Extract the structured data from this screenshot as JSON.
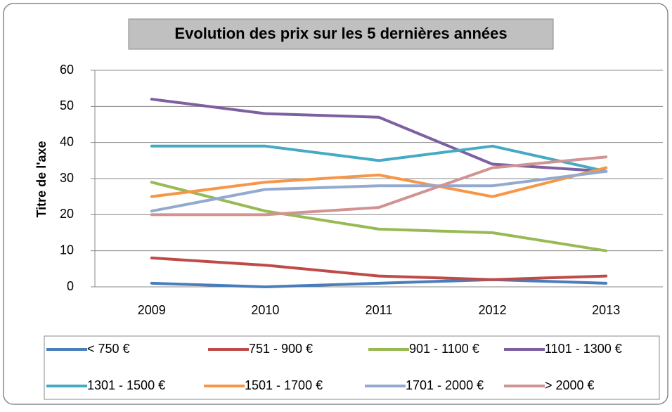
{
  "chart_data": {
    "type": "line",
    "title": "Evolution des prix sur les 5 dernières années",
    "y_label": "Titre de l'axe",
    "categories": [
      "2009",
      "2010",
      "2011",
      "2012",
      "2013"
    ],
    "ylim": [
      0,
      60
    ],
    "yticks": [
      0,
      10,
      20,
      30,
      40,
      50,
      60
    ],
    "grid": true,
    "legend": "bottom",
    "series": [
      {
        "name": "< 750 €",
        "color": "#4a7ebb",
        "values": [
          1,
          0,
          1,
          2,
          1
        ]
      },
      {
        "name": "751 - 900 €",
        "color": "#be4b48",
        "values": [
          8,
          6,
          3,
          2,
          3
        ]
      },
      {
        "name": "901 - 1100 €",
        "color": "#98b954",
        "values": [
          29,
          21,
          16,
          15,
          10
        ]
      },
      {
        "name": "1101 - 1300 €",
        "color": "#7d60a0",
        "values": [
          52,
          48,
          47,
          34,
          32
        ]
      },
      {
        "name": "1301 - 1500 €",
        "color": "#46aac5",
        "values": [
          39,
          39,
          35,
          39,
          32
        ]
      },
      {
        "name": "1501 - 1700 €",
        "color": "#f79646",
        "values": [
          25,
          29,
          31,
          25,
          33
        ]
      },
      {
        "name": "1701 - 2000 €",
        "color": "#93a9cf",
        "values": [
          21,
          27,
          28,
          28,
          32
        ]
      },
      {
        "name": "> 2000 €",
        "color": "#d19392",
        "values": [
          20,
          20,
          22,
          33,
          36
        ]
      }
    ]
  }
}
